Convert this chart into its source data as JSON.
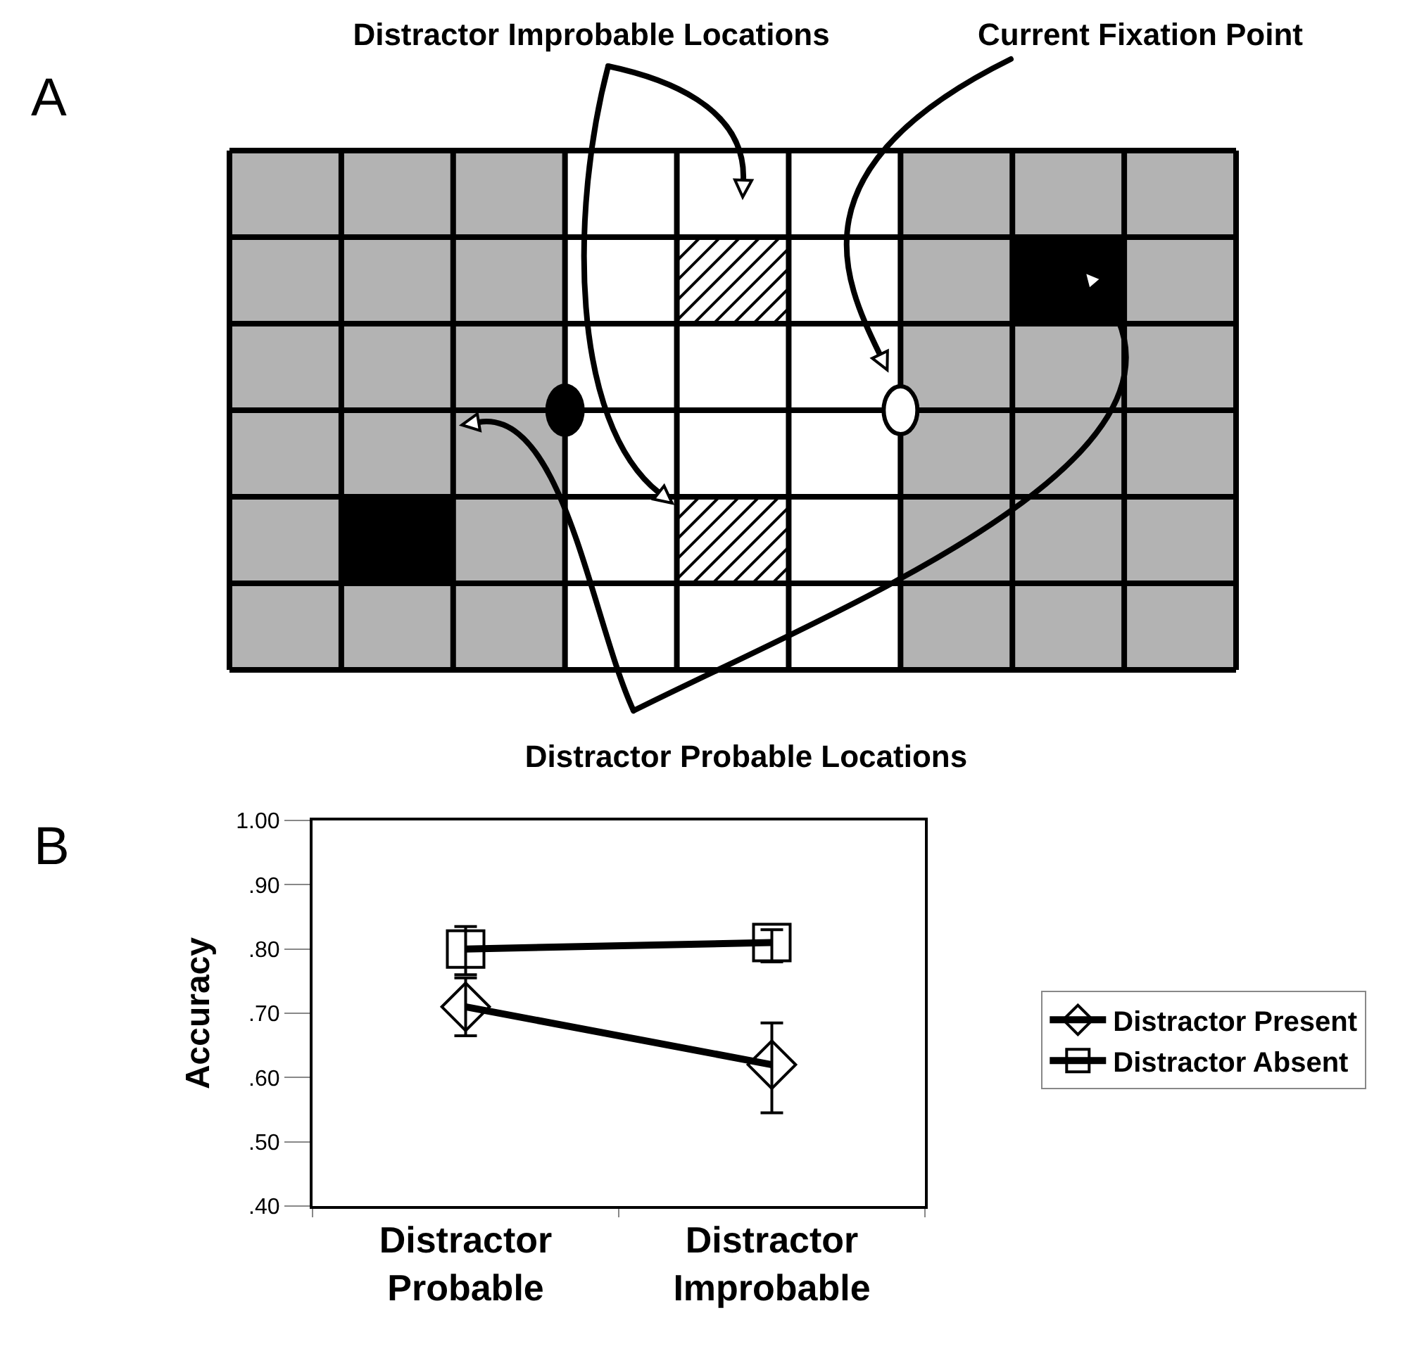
{
  "chart_data": [
    {
      "type": "other",
      "annotations": [
        "A",
        "Distractor Improbable Locations",
        "Current Fixation Point",
        "Distractor Probable Locations"
      ]
    },
    {
      "type": "line",
      "annotations": [
        "B"
      ],
      "categories": [
        "Distractor Probable",
        "Distractor Improbable"
      ],
      "ylabel": "Accuracy",
      "ylim": [
        0.4,
        1.0
      ],
      "yticks": [
        {
          "value": 0.4,
          "label": ".40"
        },
        {
          "value": 0.5,
          "label": ".50"
        },
        {
          "value": 0.6,
          "label": ".60"
        },
        {
          "value": 0.7,
          "label": ".70"
        },
        {
          "value": 0.8,
          "label": ".80"
        },
        {
          "value": 0.9,
          "label": ".90"
        },
        {
          "value": 1.0,
          "label": "1.00"
        }
      ],
      "grid": false,
      "legend": "right",
      "line_style": "solid",
      "series": [
        {
          "name": "Distractor Present",
          "color": "#000000",
          "marker": "diamond",
          "values": [
            0.71,
            0.62
          ],
          "errors": [
            [
              0.665,
              0.755
            ],
            [
              0.545,
              0.685
            ]
          ]
        },
        {
          "name": "Distractor Absent",
          "color": "#000000",
          "marker": "square",
          "values": [
            0.8,
            0.81
          ],
          "errors": [
            [
              0.76,
              0.835
            ],
            [
              0.78,
              0.83
            ]
          ]
        }
      ]
    }
  ]
}
